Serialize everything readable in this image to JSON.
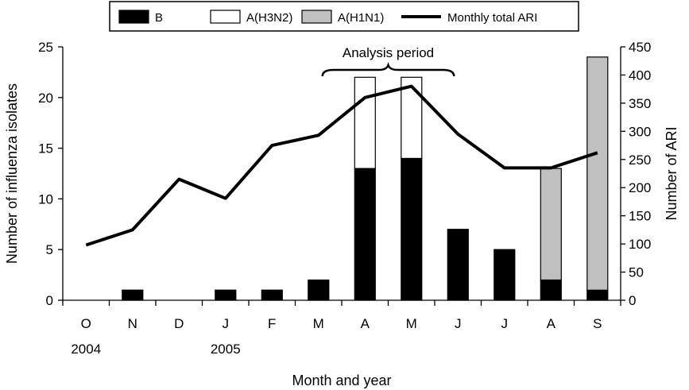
{
  "chart_data": {
    "type": "bar",
    "stacked": true,
    "categories": [
      "O",
      "N",
      "D",
      "J",
      "F",
      "M",
      "A",
      "M",
      "J",
      "J",
      "A",
      "S"
    ],
    "year_labels": [
      {
        "category_index": 0,
        "label": "2004"
      },
      {
        "category_index": 3,
        "label": "2005"
      }
    ],
    "series": [
      {
        "name": "B",
        "type": "bar",
        "axis": "left",
        "color": "#000000",
        "values": [
          0,
          1,
          0,
          1,
          1,
          2,
          13,
          14,
          7,
          5,
          2,
          1
        ]
      },
      {
        "name": "A(H3N2)",
        "type": "bar",
        "axis": "left",
        "color": "#ffffff",
        "values": [
          0,
          0,
          0,
          0,
          0,
          0,
          9,
          8,
          0,
          0,
          0,
          0
        ]
      },
      {
        "name": "A(H1N1)",
        "type": "bar",
        "axis": "left",
        "color": "#c0c0c0",
        "values": [
          0,
          0,
          0,
          0,
          0,
          0,
          0,
          0,
          0,
          0,
          11,
          23
        ]
      },
      {
        "name": "Monthly total ARI",
        "type": "line",
        "axis": "right",
        "color": "#000000",
        "values": [
          98,
          125,
          215,
          181,
          275,
          293,
          360,
          380,
          295,
          235,
          235,
          262
        ]
      }
    ],
    "xlabel": "Month and year",
    "ylabel": "Number of influenza isolates",
    "y2label": "Number of ARI",
    "ylim": [
      0,
      25
    ],
    "yticks": [
      0,
      5,
      10,
      15,
      20,
      25
    ],
    "y2lim": [
      0,
      450
    ],
    "y2ticks": [
      0,
      50,
      100,
      150,
      200,
      250,
      300,
      350,
      400,
      450
    ],
    "legend": {
      "placement": "top",
      "entries": [
        "B",
        "A(H3N2)",
        "A(H1N1)",
        "Monthly total ARI"
      ]
    },
    "annotations": [
      {
        "text": "Analysis period",
        "type": "brace",
        "from_category": 5,
        "to_category": 8
      }
    ],
    "grid": false
  }
}
